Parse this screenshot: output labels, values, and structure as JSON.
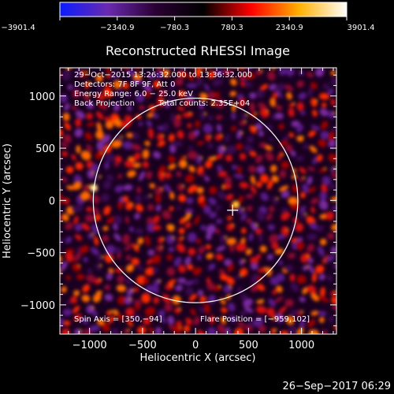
{
  "colorbar": {
    "tick_labels": [
      "−3901.4",
      "−2340.9",
      "−780.3",
      "780.3",
      "2340.9",
      "3901.4"
    ],
    "range": [
      -3901.4,
      3901.4
    ],
    "colors": [
      "#0a1cff",
      "#6a2ab0",
      "#2a0033",
      "#000000",
      "#ff0000",
      "#ffb000",
      "#ffffff"
    ]
  },
  "chart_data": {
    "type": "heatmap",
    "title": "Reconstructed RHESSI Image",
    "xlabel": "Heliocentric X (arcsec)",
    "ylabel": "Heliocentric Y (arcsec)",
    "xlim": [
      -1280,
      1330
    ],
    "ylim": [
      -1280,
      1270
    ],
    "x_ticks": [
      -1000,
      -500,
      0,
      500,
      1000
    ],
    "y_ticks": [
      -1000,
      -500,
      0,
      500,
      1000
    ],
    "x_tick_labels": [
      "−1000",
      "−500",
      "0",
      "500",
      "1000"
    ],
    "y_tick_labels": [
      "−1000",
      "−500",
      "0",
      "500",
      "1000"
    ],
    "grid": false,
    "annotations": {
      "time_range": "29−Oct−2015 13:26:32.000 to 13:36:32.000",
      "detectors": "Detectors: 7F 8F 9F, Att 0",
      "energy": "Energy Range: 6.0 − 25.0 keV",
      "method": "Back Projection",
      "counts": "Total counts: 2.35E+04",
      "spin_axis": "Spin Axis = [350,−94]",
      "flare_position": "Flare Position = [−959,102]"
    },
    "solar_disk": {
      "center": [
        0,
        0
      ],
      "radius_arcsec": 965
    },
    "spin_axis": [
      350,
      -94
    ],
    "flare_position": [
      -959,
      102
    ],
    "highlight_blobs": [
      {
        "x": -960,
        "y": 120,
        "value": 3901.4
      },
      {
        "x": 380,
        "y": -40,
        "value": 2600
      }
    ]
  },
  "footer": {
    "timestamp": "26−Sep−2017 06:29"
  }
}
